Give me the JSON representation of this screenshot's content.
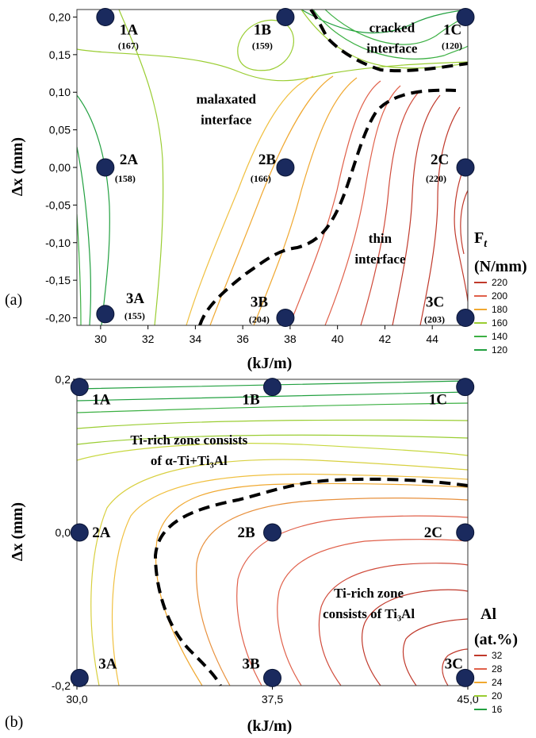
{
  "chart_data": [
    {
      "type": "contour",
      "panel_label": "(a)",
      "xlabel": "(kJ/m)",
      "ylabel": "Δx (mm)",
      "xlim": [
        29,
        45.5
      ],
      "ylim": [
        -0.21,
        0.21
      ],
      "x_ticks": [
        "30",
        "32",
        "34",
        "36",
        "38",
        "40",
        "42",
        "44"
      ],
      "x_tick_values": [
        30,
        32,
        34,
        36,
        38,
        40,
        42,
        44
      ],
      "y_ticks": [
        "0,20",
        "0,15",
        "0,10",
        "0,05",
        "0,00",
        "-0,05",
        "-0,10",
        "-0,15",
        "-0,20"
      ],
      "y_tick_values": [
        0.2,
        0.15,
        0.1,
        0.05,
        0,
        -0.05,
        -0.1,
        -0.15,
        -0.2
      ],
      "legend": {
        "title": "F",
        "title_sub": "t",
        "unit": "(N/mm)",
        "levels": [
          "220",
          "200",
          "180",
          "160",
          "140",
          "120"
        ],
        "colors": [
          "#c0392b",
          "#e0604a",
          "#f0a830",
          "#9acd32",
          "#3cb043",
          "#22a040"
        ]
      },
      "points": [
        {
          "label": "1A",
          "value": "(167)",
          "x": 30.2,
          "y": 0.2
        },
        {
          "label": "1B",
          "value": "(159)",
          "x": 37.8,
          "y": 0.2
        },
        {
          "label": "1C",
          "value": "(120)",
          "x": 45.4,
          "y": 0.2
        },
        {
          "label": "2A",
          "value": "(158)",
          "x": 30.2,
          "y": 0.0
        },
        {
          "label": "2B",
          "value": "(166)",
          "x": 37.8,
          "y": 0.0
        },
        {
          "label": "2C",
          "value": "(220)",
          "x": 45.4,
          "y": 0.0
        },
        {
          "label": "3A",
          "value": "(155)",
          "x": 30.2,
          "y": -0.195
        },
        {
          "label": "3B",
          "value": "(204)",
          "x": 37.8,
          "y": -0.2
        },
        {
          "label": "3C",
          "value": "(203)",
          "x": 45.4,
          "y": -0.2
        }
      ],
      "annotations": [
        {
          "lines": [
            "cracked",
            "interface"
          ],
          "x": 42.3,
          "y": 0.18
        },
        {
          "lines": [
            "malaxated",
            "interface"
          ],
          "x": 35.3,
          "y": 0.085
        },
        {
          "lines": [
            "thin",
            "interface"
          ],
          "x": 41.8,
          "y": -0.1
        }
      ]
    },
    {
      "type": "contour",
      "panel_label": "(b)",
      "xlabel": "(kJ/m)",
      "ylabel": "Δx (mm)",
      "xlim": [
        30,
        45
      ],
      "ylim": [
        -0.2,
        0.2
      ],
      "x_ticks": [
        "30,0",
        "37,5",
        "45,0"
      ],
      "x_tick_values": [
        30,
        37.5,
        45
      ],
      "y_ticks": [
        "0,2",
        "0,0",
        "-0,2"
      ],
      "y_tick_values": [
        0.2,
        0,
        -0.2
      ],
      "legend": {
        "title": "Al",
        "unit": "(at.%)",
        "levels": [
          "32",
          "28",
          "24",
          "20",
          "16"
        ],
        "colors": [
          "#c0392b",
          "#e0604a",
          "#f0a830",
          "#9acd32",
          "#22a040"
        ]
      },
      "points": [
        {
          "label": "1A",
          "x": 30.1,
          "y": 0.19
        },
        {
          "label": "1B",
          "x": 37.5,
          "y": 0.19
        },
        {
          "label": "1C",
          "x": 44.9,
          "y": 0.19
        },
        {
          "label": "2A",
          "x": 30.1,
          "y": 0.0
        },
        {
          "label": "2B",
          "x": 37.5,
          "y": 0.0
        },
        {
          "label": "2C",
          "x": 44.9,
          "y": 0.0
        },
        {
          "label": "3A",
          "x": 30.1,
          "y": -0.19
        },
        {
          "label": "3B",
          "x": 37.5,
          "y": -0.19
        },
        {
          "label": "3C",
          "x": 44.9,
          "y": -0.19
        }
      ],
      "annotations": [
        {
          "lines": [
            "Ti-rich zone consists",
            "of α-Ti+Ti₃Al"
          ],
          "x": 34.3,
          "y": 0.115
        },
        {
          "lines": [
            "Ti-rich zone",
            "consists of Ti₃Al"
          ],
          "x": 41.2,
          "y": -0.085
        }
      ]
    }
  ]
}
